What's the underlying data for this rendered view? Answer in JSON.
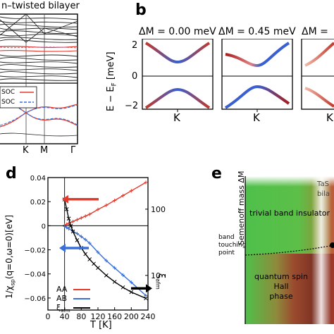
{
  "panels": {
    "a": {
      "title": "n–twisted bilayer",
      "legend": [
        "SOC",
        "SOC"
      ],
      "xticks": [
        "K",
        "M",
        "Γ"
      ]
    },
    "b": {
      "letter": "b",
      "headers": [
        "ΔM = 0.00 meV",
        "ΔM = 0.45 meV",
        "ΔM ="
      ],
      "ylabel": "E − E",
      "ylabel_sub": "F",
      "ylabel_unit": " [meV]",
      "yticks": [
        "2",
        "0",
        "−2"
      ],
      "xticks": [
        "K",
        "K",
        "K"
      ]
    },
    "d": {
      "letter": "d",
      "ylabel": "1/χ",
      "ylabel_sub": "sp",
      "ylabel_rest": "(q=0,ω=0)[eV]",
      "xlabel": "T [K]",
      "y2label": "ξ",
      "y2label_sub": "afm",
      "legend": [
        {
          "name": "AA",
          "color": "#e4392b"
        },
        {
          "name": "AB",
          "color": "#3a6fd8"
        },
        {
          "name": "ξ",
          "sub": "afm",
          "color": "#000000"
        }
      ]
    },
    "e": {
      "letter": "e",
      "ylabel": "Semenoff mass ΔM",
      "top_label_1": "TaS",
      "top_label_2": "bila",
      "region_1": "trivial band insulator",
      "boundary_1": "band",
      "boundary_2": "touching",
      "boundary_3": "point",
      "region_2a": "quantum spin Hall",
      "region_2b": "phase"
    }
  },
  "chart_data": [
    {
      "type": "line",
      "panel": "d",
      "xlim": [
        0,
        240
      ],
      "ylim": [
        -0.07,
        0.04
      ],
      "y2lim": [
        3,
        300
      ],
      "y2scale": "log",
      "xticks": [
        0,
        40,
        80,
        120,
        160,
        200,
        240
      ],
      "yticks": [
        0.04,
        0.02,
        0,
        -0.02,
        -0.04,
        -0.06
      ],
      "ytick_labels": [
        "0.04",
        "0.02",
        "0",
        "−0.02",
        "−0.04",
        "−0.06"
      ],
      "y2ticks": [
        100,
        10
      ],
      "y2tick_labels": [
        "100",
        "10"
      ],
      "series": [
        {
          "name": "AA",
          "color": "#e4392b",
          "marker": "+",
          "x": [
            40,
            45,
            50,
            60,
            70,
            80,
            90,
            100,
            120,
            140,
            160,
            180,
            200,
            235
          ],
          "y": [
            0.0005,
            0.0012,
            0.002,
            0.0035,
            0.005,
            0.0065,
            0.008,
            0.0095,
            0.0135,
            0.017,
            0.021,
            0.025,
            0.029,
            0.036
          ]
        },
        {
          "name": "AB",
          "color": "#3a6fd8",
          "marker": "+",
          "x": [
            40,
            45,
            50,
            60,
            70,
            80,
            90,
            100,
            120,
            140,
            160,
            180,
            200,
            235
          ],
          "y": [
            -0.0005,
            -0.0015,
            -0.0025,
            -0.0045,
            -0.0065,
            -0.009,
            -0.0115,
            -0.0145,
            -0.022,
            -0.029,
            -0.035,
            -0.041,
            -0.047,
            -0.058
          ]
        },
        {
          "name": "ξ afm",
          "color": "#000000",
          "marker": "x",
          "axis": "y2",
          "x": [
            40,
            45,
            50,
            55,
            60,
            70,
            80,
            90,
            100,
            110,
            120,
            140,
            160,
            180,
            200,
            235
          ],
          "y": [
            140,
            100,
            72,
            56,
            46,
            34,
            26,
            21,
            17.5,
            15,
            13,
            10,
            8,
            6.6,
            5.6,
            4.5
          ]
        }
      ],
      "vline_x": 40
    }
  ]
}
